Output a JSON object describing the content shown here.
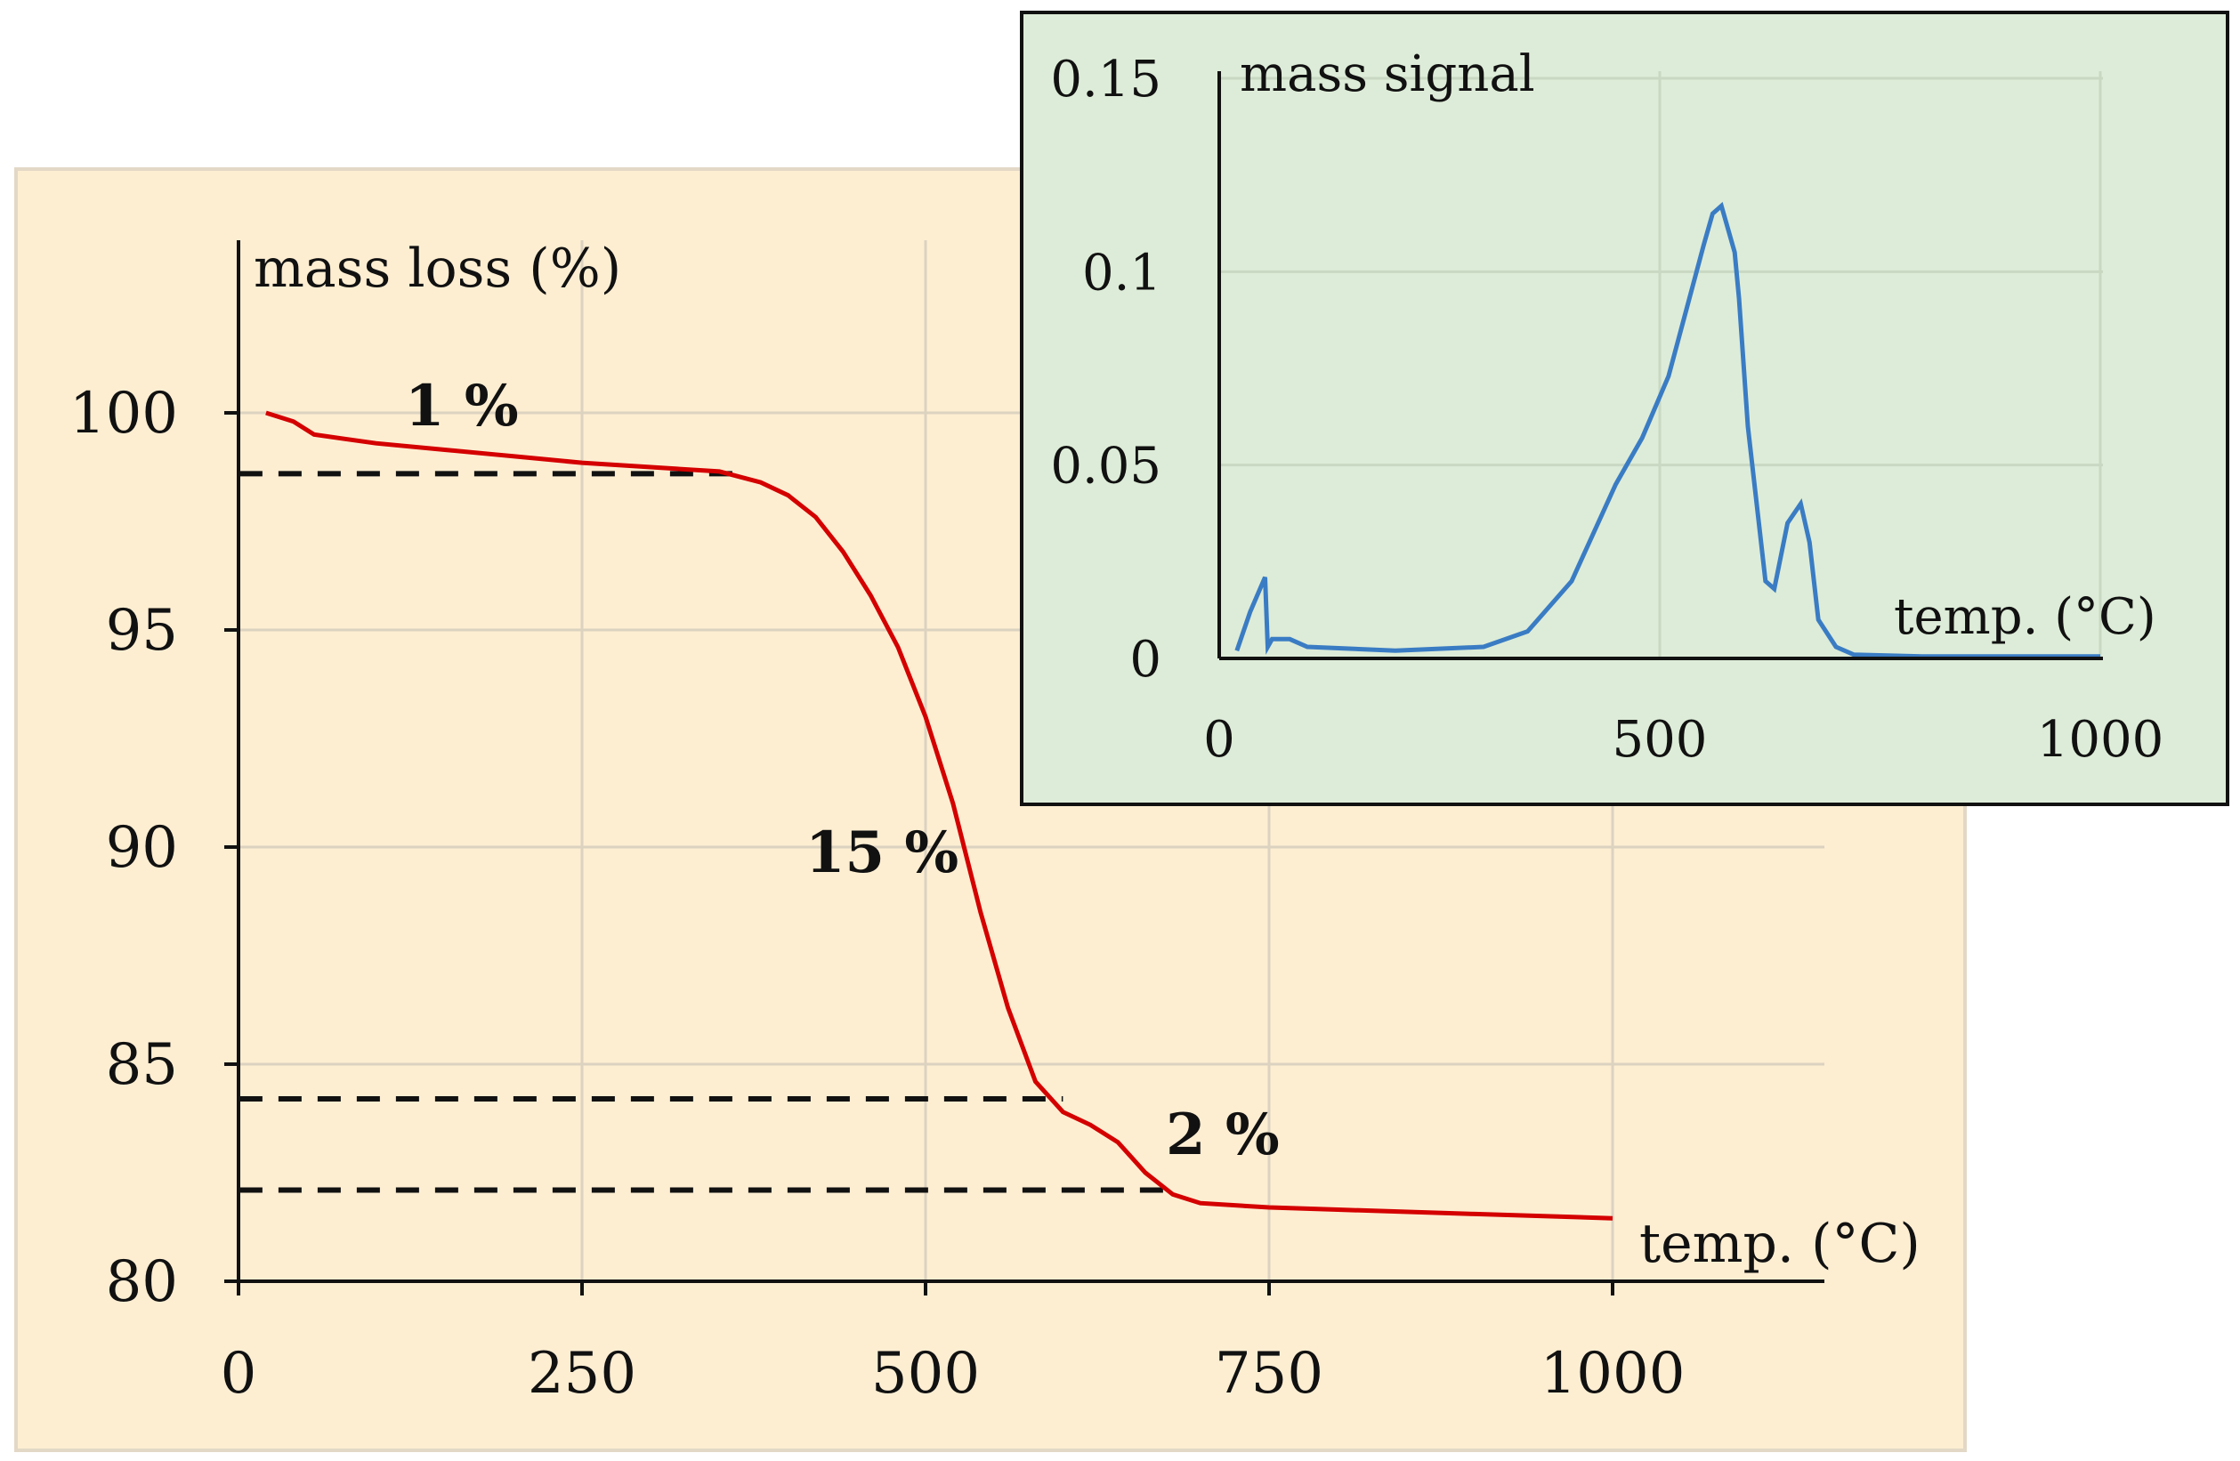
{
  "colors": {
    "main_bg": "#fdeed2",
    "main_border": "#e3d8c6",
    "inset_bg": "#ddecd8",
    "inset_border": "#111111",
    "grid": "#dcd2c0",
    "inset_grid": "#c8d8c2",
    "main_line": "#d40000",
    "inset_line": "#3a7cc4",
    "dash": "#111111"
  },
  "chart_data": [
    {
      "name": "main",
      "type": "line",
      "title": "",
      "ylabel": "mass loss (%)",
      "xlabel": "temp. (°C)",
      "xlim": [
        0,
        1150
      ],
      "ylim": [
        80,
        104
      ],
      "x_ticks": [
        0,
        250,
        500,
        750,
        1000
      ],
      "y_ticks": [
        80,
        85,
        90,
        95,
        100
      ],
      "y_tick_labels": [
        "80",
        "85",
        "90",
        "95",
        "100"
      ],
      "x_tick_labels": [
        "0",
        "250",
        "500",
        "750",
        "1000"
      ],
      "grid_x": true,
      "grid_y": true,
      "series": [
        {
          "name": "mass loss",
          "x": [
            20,
            40,
            50,
            55,
            100,
            150,
            200,
            250,
            300,
            350,
            380,
            400,
            420,
            440,
            460,
            480,
            500,
            520,
            540,
            560,
            580,
            600,
            620,
            640,
            660,
            680,
            700,
            750,
            800,
            900,
            1000
          ],
          "y": [
            100,
            99.8,
            99.6,
            99.5,
            99.3,
            99.15,
            99.0,
            98.85,
            98.75,
            98.65,
            98.4,
            98.1,
            97.6,
            96.8,
            95.8,
            94.6,
            93.0,
            91.0,
            88.5,
            86.3,
            84.6,
            83.9,
            83.6,
            83.2,
            82.5,
            82.0,
            81.8,
            81.7,
            81.65,
            81.55,
            81.45
          ]
        }
      ],
      "reference_lines": [
        {
          "y": 98.6,
          "x0": 20,
          "x1": 360
        },
        {
          "y": 84.2,
          "x0": 20,
          "x1": 600
        },
        {
          "y": 82.1,
          "x0": 20,
          "x1": 680
        }
      ],
      "annotations": [
        {
          "text": "1 %",
          "x": 165,
          "y": 100.2
        },
        {
          "text": "15 %",
          "x": 475,
          "y": 90.0
        },
        {
          "text": "2 %",
          "x": 720,
          "y": 83.1
        }
      ]
    },
    {
      "name": "inset",
      "type": "line",
      "title": "",
      "ylabel": "mass signal",
      "xlabel": "temp. (°C)",
      "xlim": [
        0,
        1000
      ],
      "ylim": [
        0,
        0.15
      ],
      "x_ticks": [
        0,
        500,
        1000
      ],
      "y_ticks": [
        0,
        0.05,
        0.1,
        0.15
      ],
      "x_tick_labels": [
        "0",
        "500",
        "1000"
      ],
      "y_tick_labels": [
        "0",
        "0.05",
        "0.1",
        "0.15"
      ],
      "grid_x": true,
      "grid_y": true,
      "series": [
        {
          "name": "mass signal",
          "x": [
            20,
            35,
            52,
            55,
            60,
            80,
            100,
            200,
            300,
            350,
            400,
            450,
            480,
            510,
            530,
            550,
            560,
            570,
            585,
            590,
            600,
            620,
            630,
            645,
            660,
            670,
            680,
            700,
            720,
            800,
            1000
          ],
          "y": [
            0.002,
            0.012,
            0.021,
            0.003,
            0.005,
            0.005,
            0.003,
            0.002,
            0.003,
            0.007,
            0.02,
            0.045,
            0.057,
            0.073,
            0.09,
            0.107,
            0.115,
            0.117,
            0.105,
            0.093,
            0.06,
            0.02,
            0.018,
            0.035,
            0.04,
            0.03,
            0.01,
            0.003,
            0.001,
            0.0005,
            0.0005
          ]
        }
      ]
    }
  ]
}
